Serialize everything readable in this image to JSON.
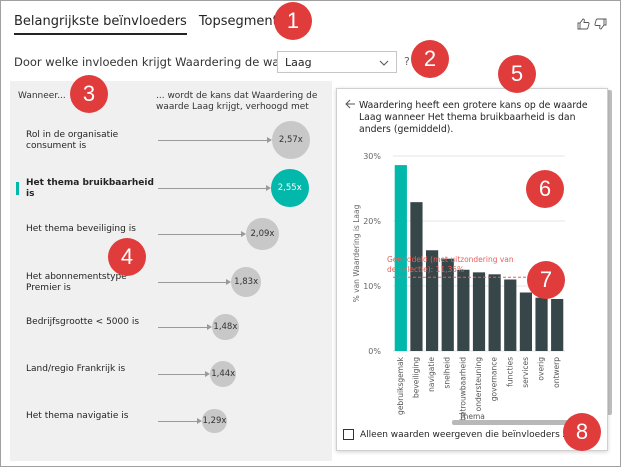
{
  "tabs": [
    {
      "label": "Belangrijkste beïnvloeders",
      "active": true
    },
    {
      "label": "Topsegmenten",
      "active": false
    }
  ],
  "question": "Door welke invloeden krijgt Waardering de waarde",
  "dropdown": {
    "selected": "Laag"
  },
  "help": "?",
  "left": {
    "col1": "Wanneer...",
    "col2": "... wordt de kans dat Waardering de waarde Laag krijgt, verhoogd met",
    "rows": [
      {
        "label": "Rol in de organisatie consument is",
        "value": "2,57x",
        "selected": false
      },
      {
        "label": "Het thema bruikbaarheid is",
        "value": "2,55x",
        "selected": true
      },
      {
        "label": "Het thema beveiliging is",
        "value": "2,09x",
        "selected": false
      },
      {
        "label": "Het abonnementstype Premier is",
        "value": "1,83x",
        "selected": false
      },
      {
        "label": "Bedrijfsgrootte < 5000 is",
        "value": "1,48x",
        "selected": false
      },
      {
        "label": "Land/regio Frankrijk is",
        "value": "1,44x",
        "selected": false
      },
      {
        "label": "Het thema navigatie is",
        "value": "1,29x",
        "selected": false
      }
    ]
  },
  "right": {
    "back_icon": "arrow-left-icon",
    "title": "Waardering heeft een grotere kans op de waarde Laag wanneer Het thema bruikbaarheid is dan anders (gemiddeld).",
    "checkbox_label": "Alleen waarden weergeven die beïnvloeders zijn"
  },
  "chart_data": {
    "type": "bar",
    "categories": [
      "gebruiksgemak",
      "beveiliging",
      "navigatie",
      "snelheid",
      "betrouwbaarheid",
      "ondersteuning",
      "governance",
      "functies",
      "services",
      "overig",
      "ontwerp"
    ],
    "values": [
      28.6,
      22.9,
      15.5,
      14.2,
      12.5,
      12.1,
      11.8,
      11.0,
      9.0,
      8.2,
      8.0
    ],
    "highlight_index": 0,
    "ylabel": "% van Waardering is Laag",
    "xlabel": "Thema",
    "yticks": [
      "0%",
      "10%",
      "20%",
      "30%"
    ],
    "ylim": [
      0,
      30
    ],
    "average_value": 11.35,
    "average_label": "Gemiddeld (met uitzondering van de selectie): 11,35%",
    "colors": {
      "highlight": "#01b8aa",
      "bar": "#374649",
      "average": "#e8605a"
    }
  },
  "callouts": [
    "1",
    "2",
    "3",
    "4",
    "5",
    "6",
    "7",
    "8"
  ],
  "colors": {
    "accent": "#01b8aa",
    "badge": "#e03c3c"
  }
}
